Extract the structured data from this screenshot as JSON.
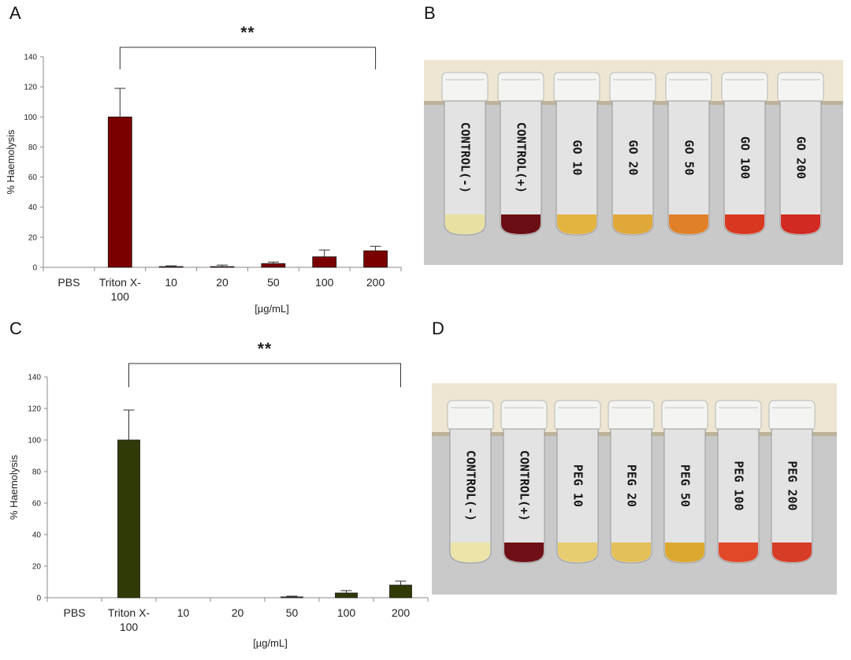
{
  "figure": {
    "panel_letters": [
      "A",
      "B",
      "C",
      "D"
    ]
  },
  "chart_data": [
    {
      "type": "bar",
      "panel": "A",
      "categories": [
        "PBS",
        "Triton X-100",
        "10",
        "20",
        "50",
        "100",
        "200"
      ],
      "values": [
        0,
        100,
        0.5,
        0.5,
        2.5,
        7,
        11
      ],
      "errors": [
        0,
        19,
        0.5,
        1,
        1,
        4.5,
        3
      ],
      "ylabel": "% Haemolysis",
      "xlabel": "[µg/mL]",
      "ylim": [
        0,
        140
      ],
      "yticks": [
        0,
        20,
        40,
        60,
        80,
        100,
        120,
        140
      ],
      "grid": false,
      "bar_color": "#7a0000",
      "significance": {
        "label": "**",
        "from": "Triton X-100",
        "to": "200"
      }
    },
    {
      "type": "bar",
      "panel": "C",
      "categories": [
        "PBS",
        "Triton X-100",
        "10",
        "20",
        "50",
        "100",
        "200"
      ],
      "values": [
        0,
        100,
        0,
        0,
        0.5,
        3,
        8
      ],
      "errors": [
        0,
        19,
        0,
        0,
        0.5,
        1.5,
        2.5
      ],
      "ylabel": "% Haemolysis",
      "xlabel": "[µg/mL]",
      "ylim": [
        0,
        140
      ],
      "yticks": [
        0,
        20,
        40,
        60,
        80,
        100,
        120,
        140
      ],
      "grid": false,
      "bar_color": "#2f3a07",
      "significance": {
        "label": "**",
        "from": "Triton X-100",
        "to": "200"
      }
    }
  ],
  "photos": [
    {
      "panel": "B",
      "tube_labels": [
        "CONTROL(-)",
        "CONTROL(+)",
        "GO 10",
        "GO 20",
        "GO 50",
        "GO 100",
        "GO 200"
      ],
      "liquid_colors": [
        "#e8e0a0",
        "#6a0e14",
        "#e4b440",
        "#e0a838",
        "#e08028",
        "#d83820",
        "#d02a22"
      ]
    },
    {
      "panel": "D",
      "tube_labels": [
        "CONTROL(-)",
        "CONTROL(+)",
        "PEG 10",
        "PEG 20",
        "PEG 50",
        "PEG 100",
        "PEG 200"
      ],
      "liquid_colors": [
        "#ece4a8",
        "#6e1016",
        "#e8cc70",
        "#e4c058",
        "#dca830",
        "#e04828",
        "#d63c26"
      ]
    }
  ]
}
